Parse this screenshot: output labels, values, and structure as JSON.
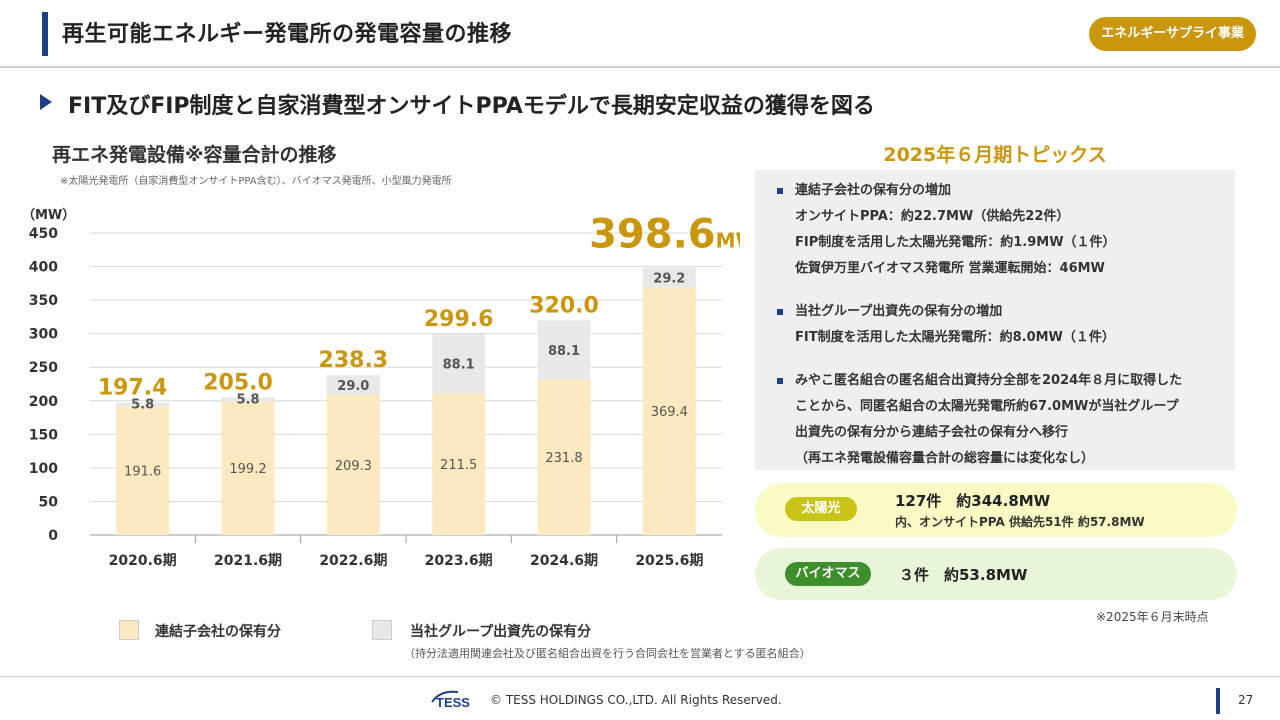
{
  "header": {
    "title": "再生可能エネルギー発電所の発電容量の推移",
    "badge": "エネルギーサプライ事業"
  },
  "subtitle": "FIT及びFIP制度と自家消費型オンサイトPPAモデルで長期安定収益の獲得を図る",
  "chart_section": {
    "title": "再エネ発電設備※容量合計の推移",
    "note": "※太陽光発電所（自家消費型オンサイトPPA含む）、バイオマス発電所、小型風力発電所"
  },
  "chart_data": {
    "type": "bar",
    "stacked": true,
    "ylabel": "（MW）",
    "ylim": [
      0,
      450
    ],
    "yticks": [
      0,
      50,
      100,
      150,
      200,
      250,
      300,
      350,
      400,
      450
    ],
    "grid": true,
    "categories": [
      "2020.6期",
      "2021.6期",
      "2022.6期",
      "2023.6期",
      "2024.6期",
      "2025.6期"
    ],
    "series": [
      {
        "name": "連結子会社の保有分",
        "values": [
          191.6,
          199.2,
          209.3,
          211.5,
          231.8,
          369.4
        ],
        "color": "#fde9bf"
      },
      {
        "name": "当社グループ出資先の保有分",
        "values": [
          5.8,
          5.8,
          29.0,
          88.1,
          88.1,
          29.2
        ],
        "color": "#e8e8e8"
      }
    ],
    "segment_labels": [
      [
        "191.6",
        "199.2",
        "209.3",
        "211.5",
        "231.8",
        "369.4"
      ],
      [
        "5.8",
        "5.8",
        "29.0",
        "88.1",
        "88.1",
        "29.2"
      ]
    ],
    "total_labels": [
      "197.4",
      "205.0",
      "238.3",
      "299.6",
      "320.0",
      "398.6"
    ],
    "last_total_unit": "MW",
    "total_color": "#c9960c"
  },
  "legend": {
    "items": [
      {
        "label": "連結子会社の保有分",
        "color": "#fde9bf"
      },
      {
        "label": "当社グループ出資先の保有分",
        "color": "#e8e8e8"
      }
    ],
    "note": "（持分法適用関連会社及び匿名組合出資を行う合同会社を営業者とする匿名組合）"
  },
  "topics": {
    "title": "2025年６月期トピックス",
    "items": [
      {
        "lines": [
          "連結子会社の保有分の増加",
          "オンサイトPPA：約22.7MW（供給先22件）",
          "FIP制度を活用した太陽光発電所：約1.9MW（１件）",
          "佐賀伊万里バイオマス発電所 営業運転開始：46MW"
        ]
      },
      {
        "lines": [
          "当社グループ出資先の保有分の増加",
          "FIT制度を活用した太陽光発電所：約8.0MW（１件）"
        ]
      },
      {
        "lines": [
          "みやこ匿名組合の匿名組合出資持分全部を2024年８月に取得した",
          "ことから、同匿名組合の太陽光発電所約67.0MWが当社グループ",
          "出資先の保有分から連結子会社の保有分へ移行",
          "（再エネ発電設備容量合計の総容量には変化なし）"
        ]
      }
    ]
  },
  "summary": {
    "solar": {
      "tag": "太陽光",
      "main": "127件　約344.8MW",
      "sub": "内、オンサイトPPA 供給先51件 約57.8MW"
    },
    "biomass": {
      "tag": "バイオマス",
      "main": "３件　約53.8MW"
    },
    "asof": "※2025年６月末時点"
  },
  "footer": {
    "logo_text": "TESS",
    "copyright": "© TESS HOLDINGS CO.,LTD. All Rights Reserved.",
    "page": "27"
  }
}
